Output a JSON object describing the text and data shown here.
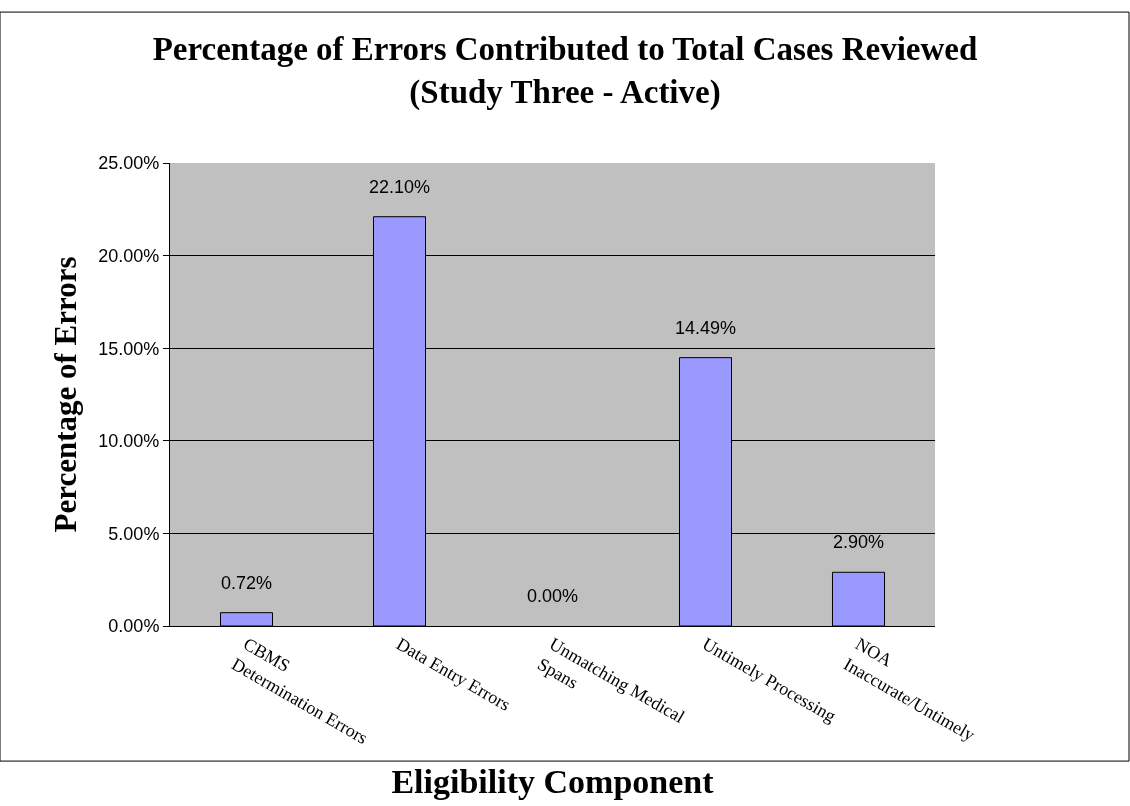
{
  "chart_data": {
    "type": "bar",
    "title": "Percentage of Errors Contributed to Total Cases Reviewed\n(Study Three - Active)",
    "xlabel": "Eligibility Component",
    "ylabel": "Percentage of Errors",
    "categories": [
      "CBMS\nDetermination Errors",
      "Data Entry Errors",
      "Unmatching Medical\nSpans",
      "Untimely Processing",
      "NOA\nInaccurate/Untimely"
    ],
    "values": [
      0.72,
      22.1,
      0.0,
      14.49,
      2.9
    ],
    "value_labels": [
      "0.72%",
      "22.10%",
      "0.00%",
      "14.49%",
      "2.90%"
    ],
    "color": "#9999ff",
    "ylim": [
      0,
      25
    ],
    "yticks": [
      {
        "value": 0,
        "label": "0.00%"
      },
      {
        "value": 5,
        "label": "5.00%"
      },
      {
        "value": 10,
        "label": "10.00%"
      },
      {
        "value": 15,
        "label": "15.00%"
      },
      {
        "value": 20,
        "label": "20.00%"
      },
      {
        "value": 25,
        "label": "25.00%"
      }
    ],
    "grid": "y"
  }
}
